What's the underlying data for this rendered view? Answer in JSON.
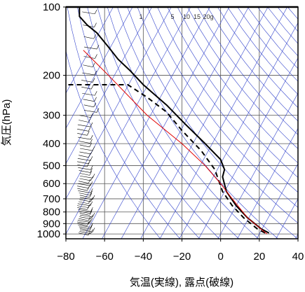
{
  "chart_data": {
    "type": "line",
    "subtype": "skew-t",
    "title": "",
    "xlabel": "気温(実線), 露点(破線)",
    "ylabel": "気圧(hPa)",
    "xlim": [
      -80,
      40
    ],
    "ylim": [
      1050,
      100
    ],
    "y_scale": "log",
    "x_ticks": [
      -80,
      -60,
      -40,
      -20,
      0,
      20,
      40
    ],
    "x_tick_labels": [
      "−80",
      "−60",
      "−40",
      "−20",
      "0",
      "20",
      "40"
    ],
    "y_ticks": [
      100,
      200,
      300,
      400,
      500,
      600,
      700,
      800,
      900,
      1000
    ],
    "y_tick_labels": [
      "100",
      "200",
      "300",
      "400",
      "500",
      "600",
      "700",
      "800",
      "900",
      "1000"
    ],
    "grid": true,
    "mixing_ratio_labels": [
      "1",
      "5",
      "10",
      "15",
      "20g"
    ],
    "series": [
      {
        "role": "temperature",
        "color": "#000000",
        "style": "solid",
        "x": [
          25,
          21,
          14,
          8,
          3,
          1,
          2,
          0,
          -8,
          -18,
          -28,
          -40,
          -47,
          -53,
          -58,
          -64,
          -69,
          -73,
          -73
        ],
        "y": [
          990,
          950,
          850,
          750,
          650,
          560,
          520,
          470,
          400,
          330,
          270,
          220,
          190,
          170,
          150,
          130,
          120,
          110,
          100
        ]
      },
      {
        "role": "dewpoint",
        "color": "#000000",
        "style": "dashed",
        "x": [
          23,
          19,
          12,
          6,
          1,
          -3,
          -10,
          -20,
          -28,
          -38,
          -48,
          -81
        ],
        "y": [
          990,
          950,
          850,
          750,
          650,
          520,
          430,
          350,
          290,
          250,
          220,
          220
        ]
      },
      {
        "role": "parcel",
        "color": "#e00000",
        "style": "solid",
        "x": [
          24,
          14,
          6,
          0,
          -8,
          -20,
          -38,
          -58,
          -71
        ],
        "y": [
          1000,
          850,
          700,
          600,
          500,
          400,
          300,
          200,
          155
        ]
      }
    ],
    "wind_barbs": true,
    "colors": {
      "grid": "#555555",
      "isotherms_dry_adiabats": "#3344cc",
      "border": "#000000"
    }
  }
}
